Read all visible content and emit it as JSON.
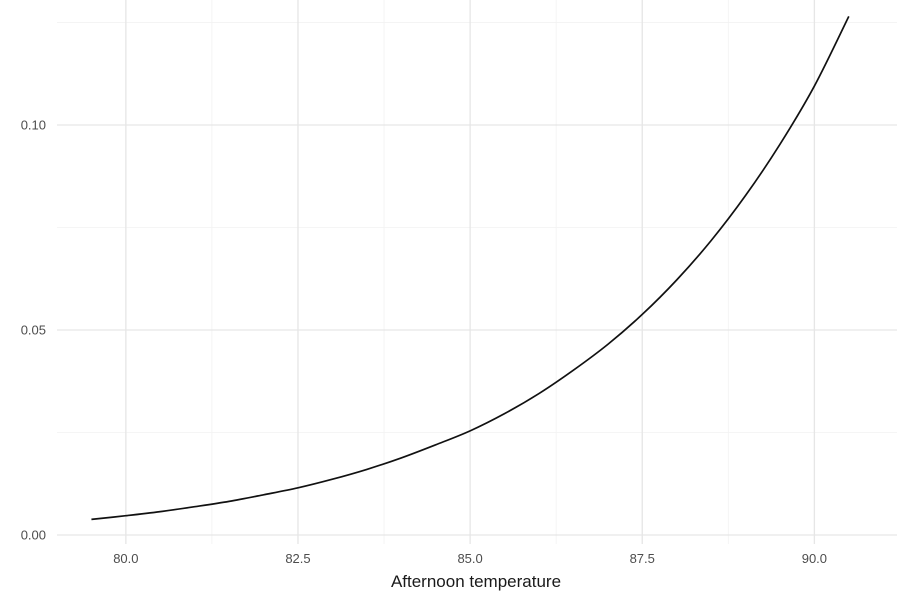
{
  "chart_data": {
    "type": "line",
    "title": "",
    "xlabel": "Afternoon temperature",
    "ylabel": "",
    "xlim": [
      79.0,
      91.2
    ],
    "ylim": [
      -0.0022,
      0.1305
    ],
    "x_ticks": [
      80.0,
      82.5,
      85.0,
      87.5,
      90.0
    ],
    "x_tick_labels": [
      "80.0",
      "82.5",
      "85.0",
      "87.5",
      "90.0"
    ],
    "y_ticks": [
      0.0,
      0.05,
      0.1
    ],
    "y_tick_labels": [
      "0.00",
      "0.05",
      "0.10"
    ],
    "grid": true,
    "legend": "none",
    "line_color": "#111111",
    "series": [
      {
        "x": [
          79.5,
          80.0,
          80.5,
          81.0,
          81.5,
          82.0,
          82.5,
          83.0,
          83.5,
          84.0,
          84.5,
          85.0,
          85.5,
          86.0,
          86.5,
          87.0,
          87.5,
          88.0,
          88.5,
          89.0,
          89.5,
          90.0,
          90.5
        ],
        "values": [
          0.0038,
          0.0047,
          0.0057,
          0.0069,
          0.0082,
          0.0098,
          0.0115,
          0.0136,
          0.016,
          0.0188,
          0.022,
          0.0254,
          0.0296,
          0.0345,
          0.0402,
          0.0465,
          0.0538,
          0.0622,
          0.0718,
          0.0828,
          0.0953,
          0.1095,
          0.1265
        ]
      }
    ]
  }
}
